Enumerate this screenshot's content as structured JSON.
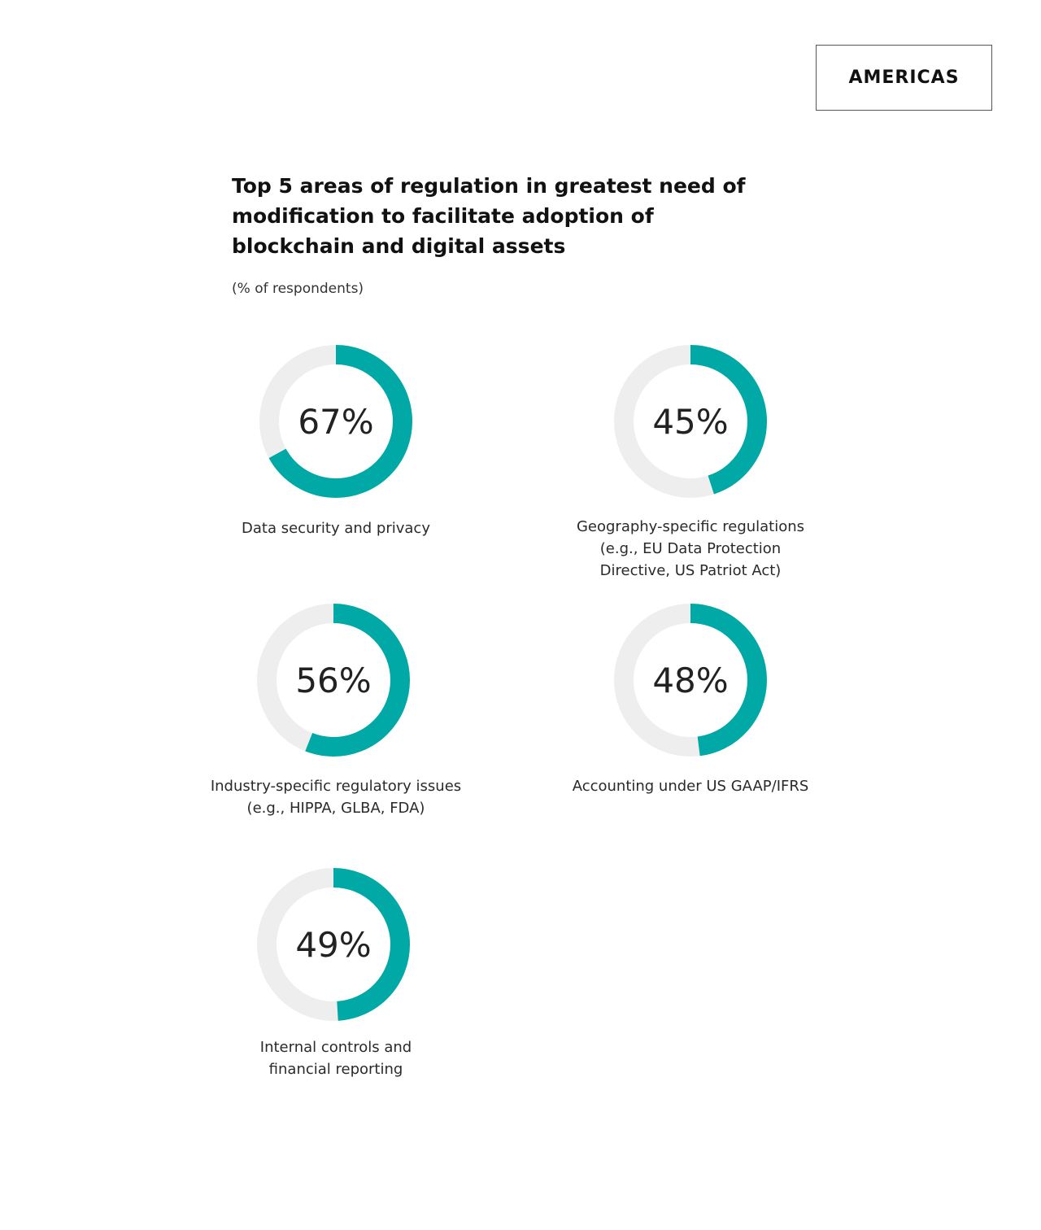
{
  "region": "AMERICAS",
  "chart_data": {
    "type": "donut",
    "title_lines": [
      "Top 5 areas of regulation in greatest need of",
      "modification to facilitate adoption of",
      "blockchain and digital assets"
    ],
    "subtitle": "(% of respondents)",
    "unit": "%",
    "colors": {
      "filled": "#00A9A5",
      "track": "#EEEEEE"
    },
    "items": [
      {
        "value": 67,
        "value_label": "67%",
        "label_lines": [
          "Data security and privacy"
        ]
      },
      {
        "value": 45,
        "value_label": "45%",
        "label_lines": [
          "Geography-specific regulations",
          "(e.g., EU Data Protection",
          "Directive, US Patriot Act)"
        ]
      },
      {
        "value": 56,
        "value_label": "56%",
        "label_lines": [
          "Industry-specific regulatory issues",
          "(e.g., HIPPA, GLBA, FDA)"
        ]
      },
      {
        "value": 48,
        "value_label": "48%",
        "label_lines": [
          "Accounting under US GAAP/IFRS"
        ]
      },
      {
        "value": 49,
        "value_label": "49%",
        "label_lines": [
          "Internal controls and",
          "financial reporting"
        ]
      }
    ]
  }
}
